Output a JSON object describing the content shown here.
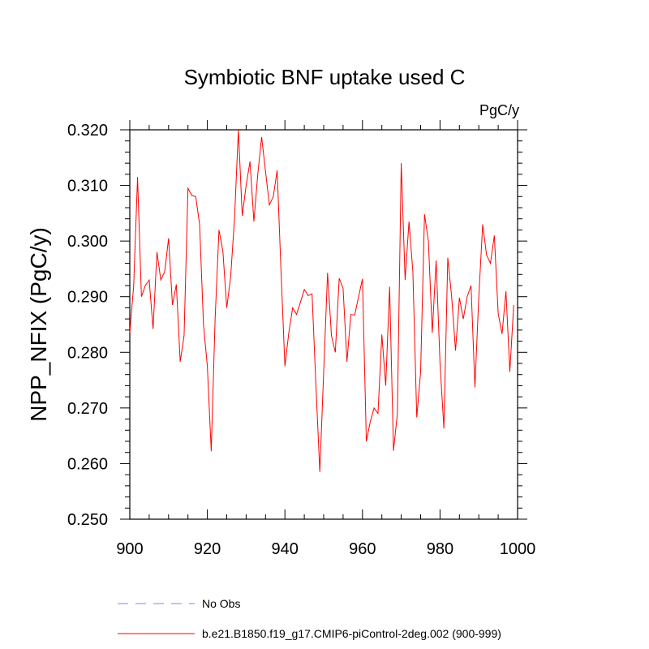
{
  "chart_data": {
    "type": "line",
    "title": "Symbiotic BNF uptake used C",
    "units": "PgC/y",
    "xlabel": "",
    "ylabel": "NPP_NFIX  (PgC/y)",
    "xlim": [
      900,
      1000
    ],
    "ylim": [
      0.25,
      0.32
    ],
    "x_ticks": [
      900,
      920,
      940,
      960,
      980,
      1000
    ],
    "x_tick_labels": [
      "900",
      "920",
      "940",
      "960",
      "980",
      "1000"
    ],
    "y_ticks": [
      0.25,
      0.26,
      0.27,
      0.28,
      0.29,
      0.3,
      0.31,
      0.32
    ],
    "y_tick_labels": [
      "0.250",
      "0.260",
      "0.270",
      "0.280",
      "0.290",
      "0.300",
      "0.310",
      "0.320"
    ],
    "series": [
      {
        "name": "b.e21.B1850.f19_g17.CMIP6-piControl-2deg.002 (900-999)",
        "color": "#ff0000",
        "x_start": 900,
        "values": [
          0.2835,
          0.292,
          0.3115,
          0.29,
          0.292,
          0.293,
          0.2842,
          0.298,
          0.293,
          0.2945,
          0.3005,
          0.2885,
          0.2922,
          0.2783,
          0.283,
          0.3095,
          0.3082,
          0.308,
          0.303,
          0.285,
          0.2775,
          0.2622,
          0.286,
          0.302,
          0.2982,
          0.288,
          0.2935,
          0.304,
          0.32,
          0.3045,
          0.31,
          0.3143,
          0.3035,
          0.312,
          0.3187,
          0.3125,
          0.3065,
          0.308,
          0.3127,
          0.2945,
          0.2775,
          0.2835,
          0.288,
          0.2868,
          0.289,
          0.2913,
          0.2902,
          0.2905,
          0.274,
          0.2585,
          0.2765,
          0.2943,
          0.283,
          0.28,
          0.2933,
          0.2915,
          0.2783,
          0.2868,
          0.2867,
          0.29,
          0.2932,
          0.264,
          0.2675,
          0.27,
          0.269,
          0.2832,
          0.274,
          0.2918,
          0.2623,
          0.269,
          0.314,
          0.293,
          0.3035,
          0.2945,
          0.2683,
          0.2765,
          0.3048,
          0.3,
          0.2835,
          0.2965,
          0.278,
          0.2663,
          0.297,
          0.29,
          0.2803,
          0.2898,
          0.286,
          0.29,
          0.292,
          0.2737,
          0.29,
          0.303,
          0.2975,
          0.296,
          0.301,
          0.287,
          0.2833,
          0.291,
          0.2765,
          0.2885
        ]
      }
    ],
    "legend": [
      {
        "label": "No Obs",
        "color": "#8080ff",
        "style": "dashed"
      },
      {
        "label": "b.e21.B1850.f19_g17.CMIP6-piControl-2deg.002 (900-999)",
        "color": "#ff0000",
        "style": "solid"
      }
    ],
    "grid": false,
    "legend_position": "bottom"
  }
}
